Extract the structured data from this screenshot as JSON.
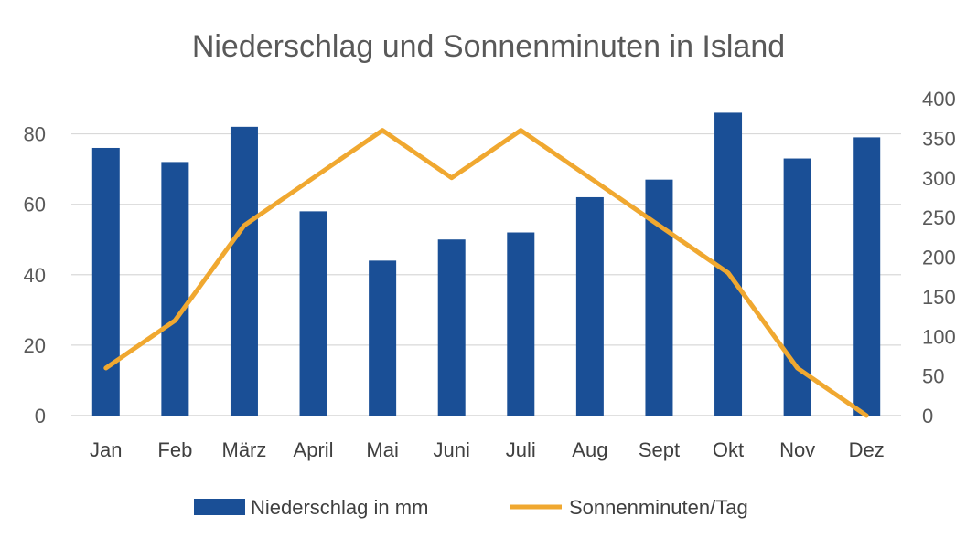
{
  "chart_data": {
    "type": "bar",
    "title": "Niederschlag und Sonnenminuten in Island",
    "categories": [
      "Jan",
      "Feb",
      "März",
      "April",
      "Mai",
      "Juni",
      "Juli",
      "Aug",
      "Sept",
      "Okt",
      "Nov",
      "Dez"
    ],
    "series": [
      {
        "name": "Niederschlag in mm",
        "type": "bar",
        "axis": "left",
        "color": "#1a4f96",
        "values": [
          76,
          72,
          82,
          58,
          44,
          50,
          52,
          62,
          67,
          86,
          73,
          79
        ]
      },
      {
        "name": "Sonnenminuten/Tag",
        "type": "line",
        "axis": "right",
        "color": "#f0a830",
        "values": [
          60,
          120,
          240,
          300,
          360,
          300,
          360,
          300,
          240,
          180,
          60,
          0
        ]
      }
    ],
    "y_left": {
      "min": 0,
      "max": 90,
      "ticks": [
        0,
        20,
        40,
        60,
        80
      ]
    },
    "y_right": {
      "min": 0,
      "max": 400,
      "ticks": [
        0,
        50,
        100,
        150,
        200,
        250,
        300,
        350,
        400
      ]
    },
    "grid": true,
    "legend_position": "bottom"
  }
}
